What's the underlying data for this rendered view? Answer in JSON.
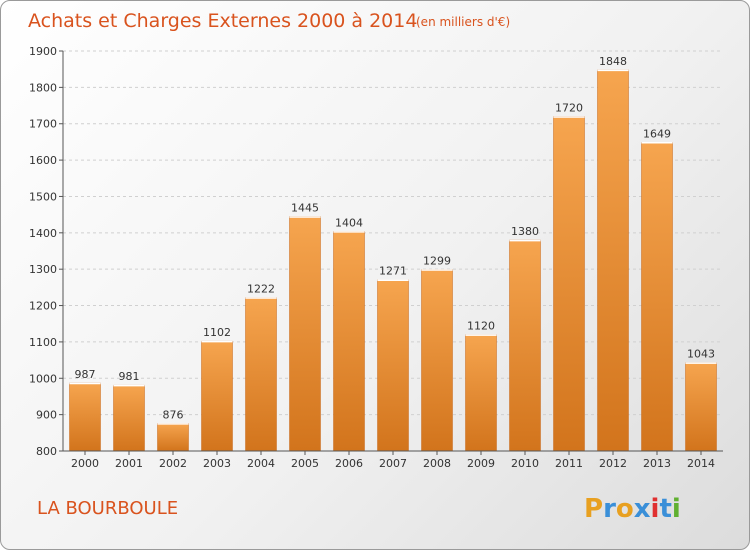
{
  "colors": {
    "title": "#d9531e",
    "bar_light": "#f6a54f",
    "bar_dark": "#d2741c",
    "grid": "#d0d0d0",
    "axis": "#555555"
  },
  "location": "LA BOURBOULE",
  "brand": {
    "letters": [
      "P",
      "r",
      "o",
      "x",
      "i",
      "t",
      "i"
    ],
    "colors": [
      "#e8a020",
      "#3a8fd8",
      "#e8a020",
      "#3a8fd8",
      "#e03030",
      "#3a8fd8",
      "#60b030"
    ]
  },
  "chart_data": {
    "type": "bar",
    "title": "Achats et Charges Externes 2000 à 2014",
    "subtitle": "(en milliers d'€)",
    "categories": [
      "2000",
      "2001",
      "2002",
      "2003",
      "2004",
      "2005",
      "2006",
      "2007",
      "2008",
      "2009",
      "2010",
      "2011",
      "2012",
      "2013",
      "2014"
    ],
    "values": [
      987,
      981,
      876,
      1102,
      1222,
      1445,
      1404,
      1271,
      1299,
      1120,
      1380,
      1720,
      1848,
      1649,
      1043
    ],
    "value_labels": [
      "987",
      "981",
      "876",
      "1102",
      "1222",
      "1445",
      "1404",
      "1271",
      "1299",
      "1120",
      "1380",
      "1720",
      "1848",
      "1649",
      "1043"
    ],
    "ylim": [
      800,
      1900
    ],
    "yticks": [
      800,
      900,
      1000,
      1100,
      1200,
      1300,
      1400,
      1500,
      1600,
      1700,
      1800,
      1900
    ],
    "ytick_labels": [
      "800",
      "900",
      "1000",
      "1100",
      "1200",
      "1300",
      "1400",
      "1500",
      "1600",
      "1700",
      "1800",
      "1900"
    ],
    "grid": true,
    "legend": "none"
  }
}
